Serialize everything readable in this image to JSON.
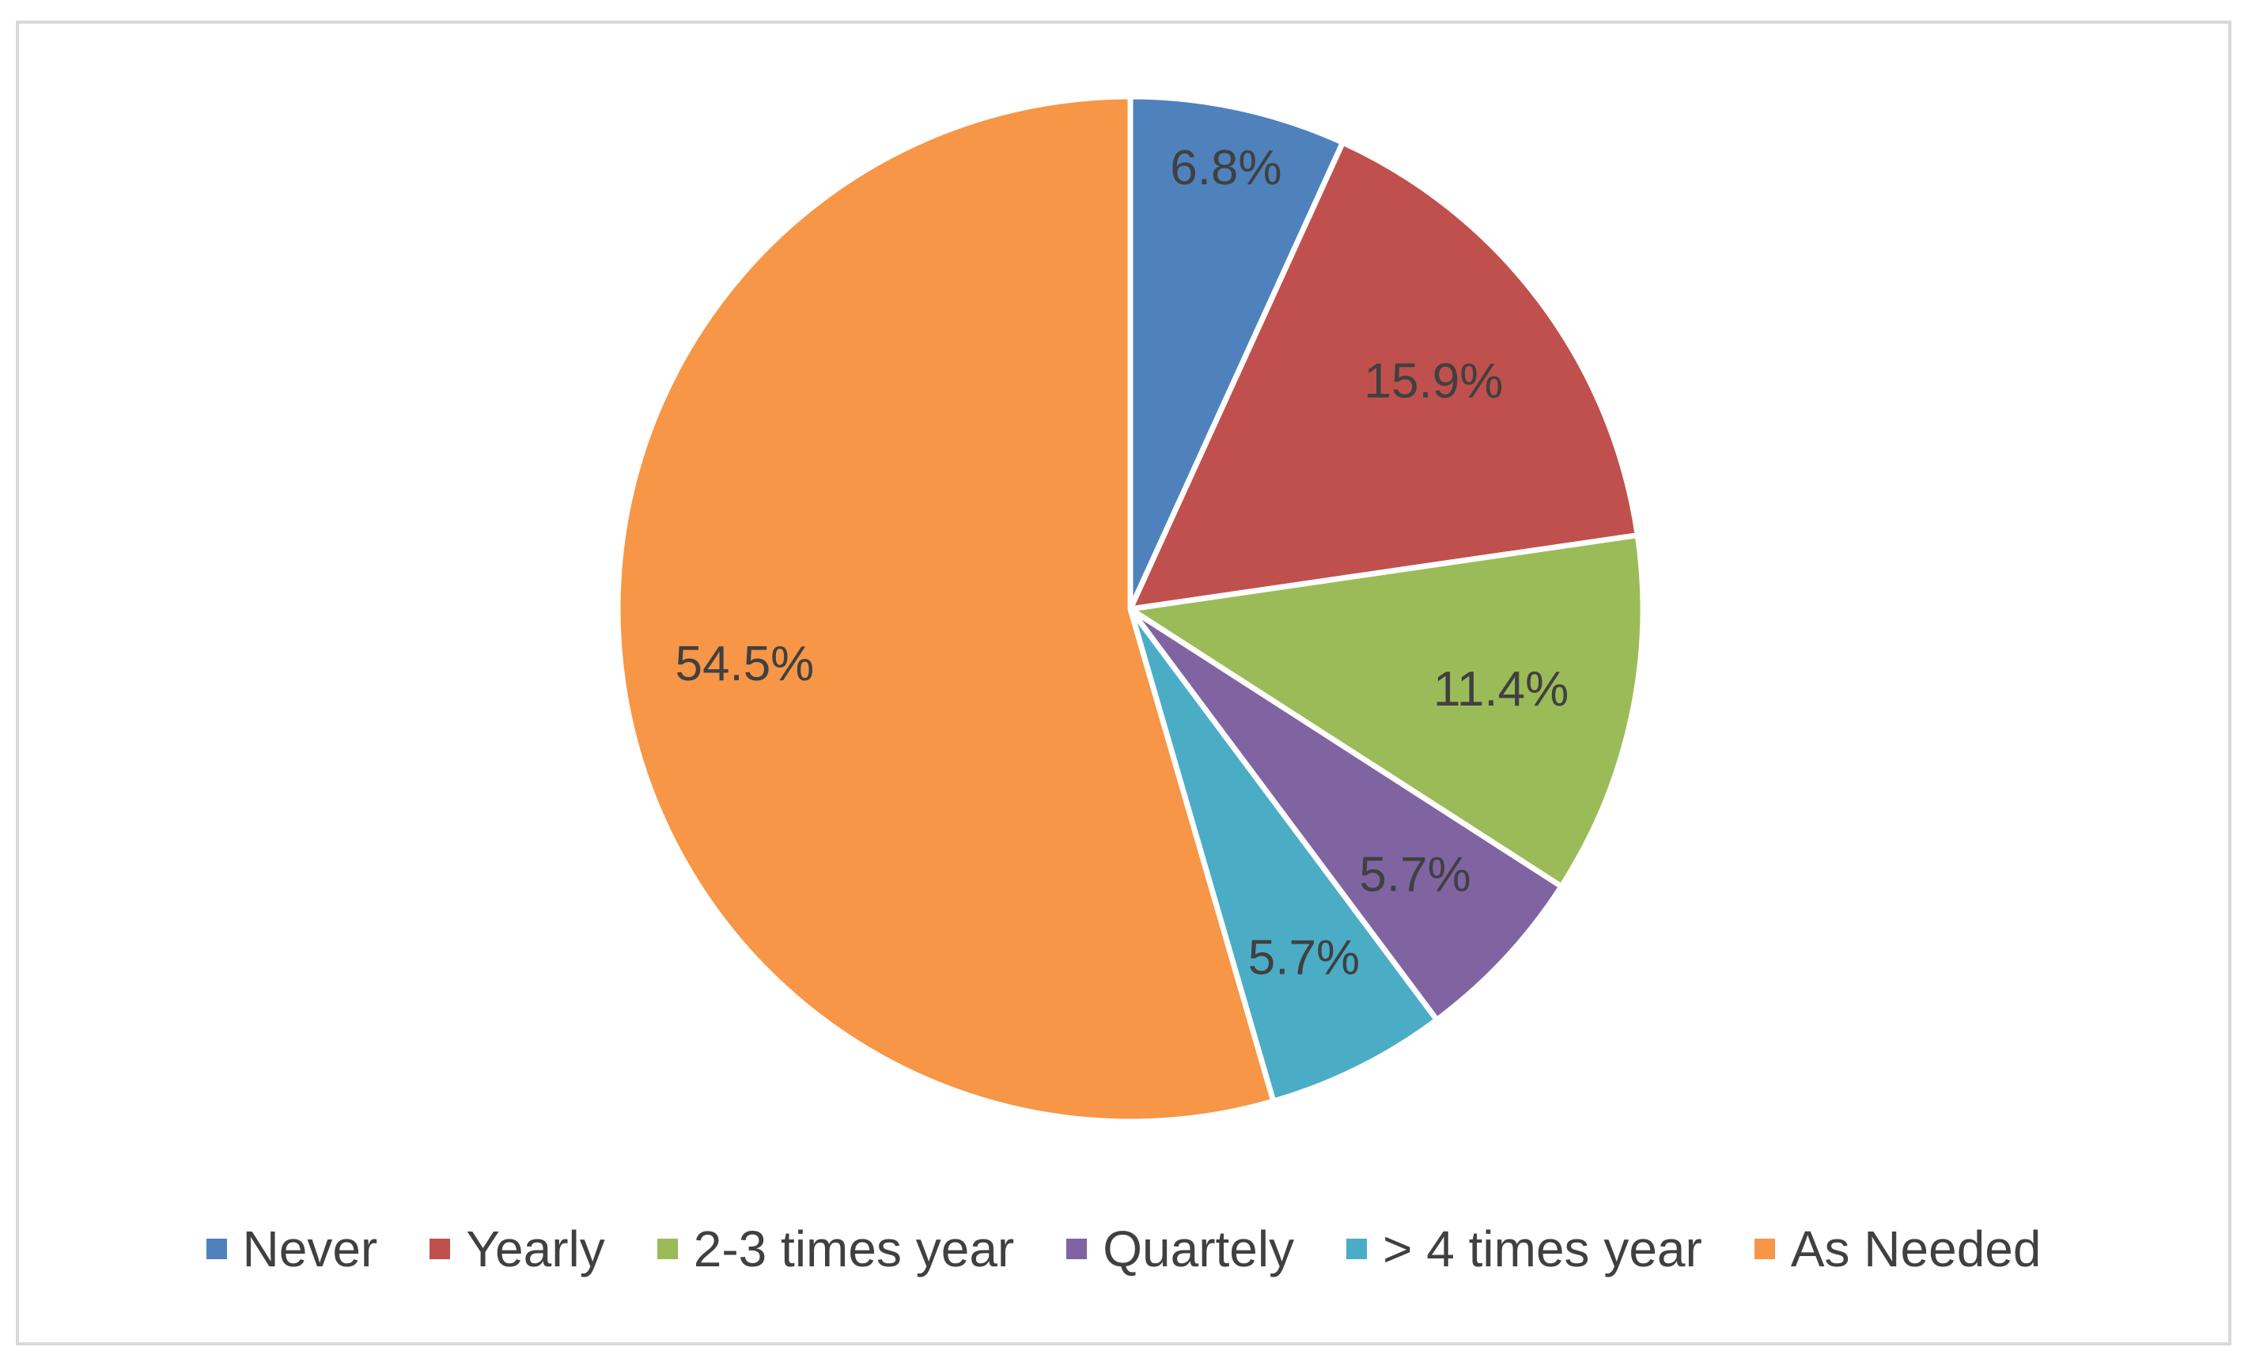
{
  "chart_data": {
    "type": "pie",
    "title": "",
    "start_angle_deg": 0,
    "direction": "clockwise",
    "legend_position": "bottom",
    "slices": [
      {
        "label": "Never",
        "value": 6.8,
        "display": "6.8%",
        "color": "#4f81bd"
      },
      {
        "label": "Yearly",
        "value": 15.9,
        "display": "15.9%",
        "color": "#c0504d"
      },
      {
        "label": "2-3 times year",
        "value": 11.4,
        "display": "11.4%",
        "color": "#9bbb59"
      },
      {
        "label": "Quartely",
        "value": 5.7,
        "display": "5.7%",
        "color": "#8064a2"
      },
      {
        "label": "> 4 times year",
        "value": 5.7,
        "display": "5.7%",
        "color": "#4bacc6"
      },
      {
        "label": "As Needed",
        "value": 54.5,
        "display": "54.5%",
        "color": "#f79646"
      }
    ]
  }
}
